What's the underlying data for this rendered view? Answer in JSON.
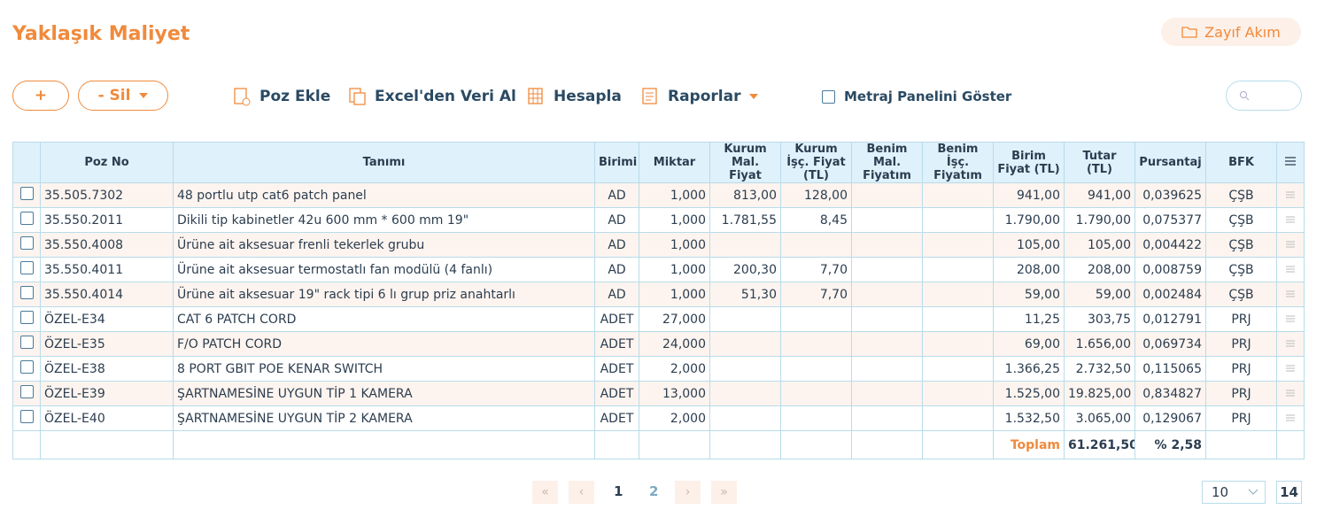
{
  "header": {
    "title": "Yaklaşık Maliyet",
    "flow_button": "Zayıf Akım"
  },
  "toolbar": {
    "add": "+",
    "delete": "- Sil",
    "items": [
      "Poz Ekle",
      "Excel'den Veri Al",
      "Hesapla",
      "Raporlar"
    ],
    "checkbox": "Metraj Panelini Göster"
  },
  "table": {
    "columns": [
      "Poz No",
      "Tanımı",
      "Birimi",
      "Miktar",
      "Kurum Mal. Fiyat",
      "Kurum İşç. Fiyat (TL)",
      "Benim Mal. Fiyatım",
      "Benim İşç. Fiyatım",
      "Birim Fiyat (TL)",
      "Tutar (TL)",
      "Pursantaj",
      "BFK"
    ],
    "rows": [
      [
        "35.505.7302",
        "48 portlu utp cat6 patch panel",
        "AD",
        "1,000",
        "813,00",
        "128,00",
        null,
        null,
        "941,00",
        "941,00",
        "0,039625",
        "ÇŞB"
      ],
      [
        "35.550.2011",
        "Dikili tip kabinetler 42u 600 mm * 600 mm 19\"",
        "AD",
        "1,000",
        "1.781,55",
        "8,45",
        null,
        null,
        "1.790,00",
        "1.790,00",
        "0,075377",
        "ÇŞB"
      ],
      [
        "35.550.4008",
        "Ürüne ait aksesuar frenli tekerlek grubu",
        "AD",
        "1,000",
        null,
        null,
        null,
        null,
        "105,00",
        "105,00",
        "0,004422",
        "ÇŞB"
      ],
      [
        "35.550.4011",
        "Ürüne ait aksesuar termostatlı fan modülü (4 fanlı)",
        "AD",
        "1,000",
        "200,30",
        "7,70",
        null,
        null,
        "208,00",
        "208,00",
        "0,008759",
        "ÇŞB"
      ],
      [
        "35.550.4014",
        "Ürüne ait aksesuar 19\" rack tipi 6 lı grup priz anahtarlı",
        "AD",
        "1,000",
        "51,30",
        "7,70",
        null,
        null,
        "59,00",
        "59,00",
        "0,002484",
        "ÇŞB"
      ],
      [
        "ÖZEL-E34",
        "CAT 6 PATCH CORD",
        "ADET",
        "27,000",
        null,
        null,
        null,
        null,
        "11,25",
        "303,75",
        "0,012791",
        "PRJ"
      ],
      [
        "ÖZEL-E35",
        "F/O PATCH CORD",
        "ADET",
        "24,000",
        null,
        null,
        null,
        null,
        "69,00",
        "1.656,00",
        "0,069734",
        "PRJ"
      ],
      [
        "ÖZEL-E38",
        "8 PORT GBIT POE KENAR SWITCH",
        "ADET",
        "2,000",
        null,
        null,
        null,
        null,
        "1.366,25",
        "2.732,50",
        "0,115065",
        "PRJ"
      ],
      [
        "ÖZEL-E39",
        "ŞARTNAMESİNE UYGUN TİP 1 KAMERA",
        "ADET",
        "13,000",
        null,
        null,
        null,
        null,
        "1.525,00",
        "19.825,00",
        "0,834827",
        "PRJ"
      ],
      [
        "ÖZEL-E40",
        "ŞARTNAMESİNE UYGUN TİP 2 KAMERA",
        "ADET",
        "2,000",
        null,
        null,
        null,
        null,
        "1.532,50",
        "3.065,00",
        "0,129067",
        "PRJ"
      ]
    ],
    "footer": {
      "label": "Toplam",
      "total": "61.261,50",
      "percent": "% 2,58"
    }
  },
  "pagination": {
    "pages": [
      "1",
      "2"
    ],
    "page_size": "10",
    "total": "14"
  }
}
